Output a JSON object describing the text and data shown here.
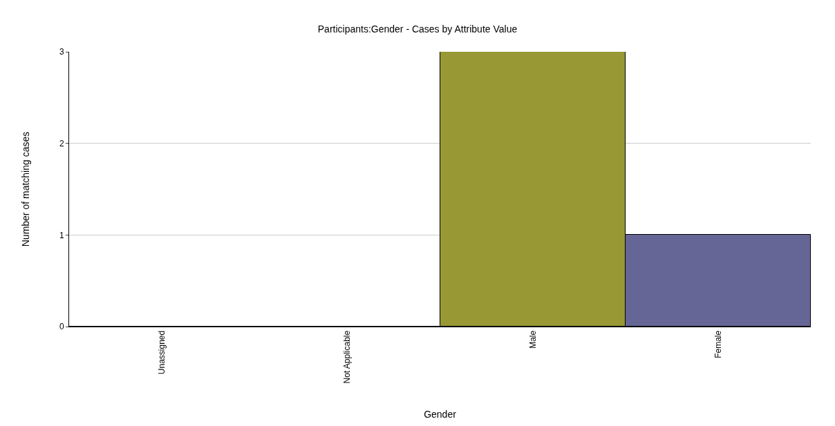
{
  "chart_data": {
    "type": "bar",
    "title": "Participants:Gender - Cases by Attribute Value",
    "xlabel": "Gender",
    "ylabel": "Number of matching cases",
    "categories": [
      "Unassigned",
      "Not Applicable",
      "Male",
      "Female"
    ],
    "values": [
      0,
      0,
      3,
      1
    ],
    "colors": [
      null,
      null,
      "#989834",
      "#666696"
    ],
    "ylim": [
      0,
      3
    ],
    "yticks": [
      0,
      1,
      2,
      3
    ],
    "grid": "y"
  }
}
